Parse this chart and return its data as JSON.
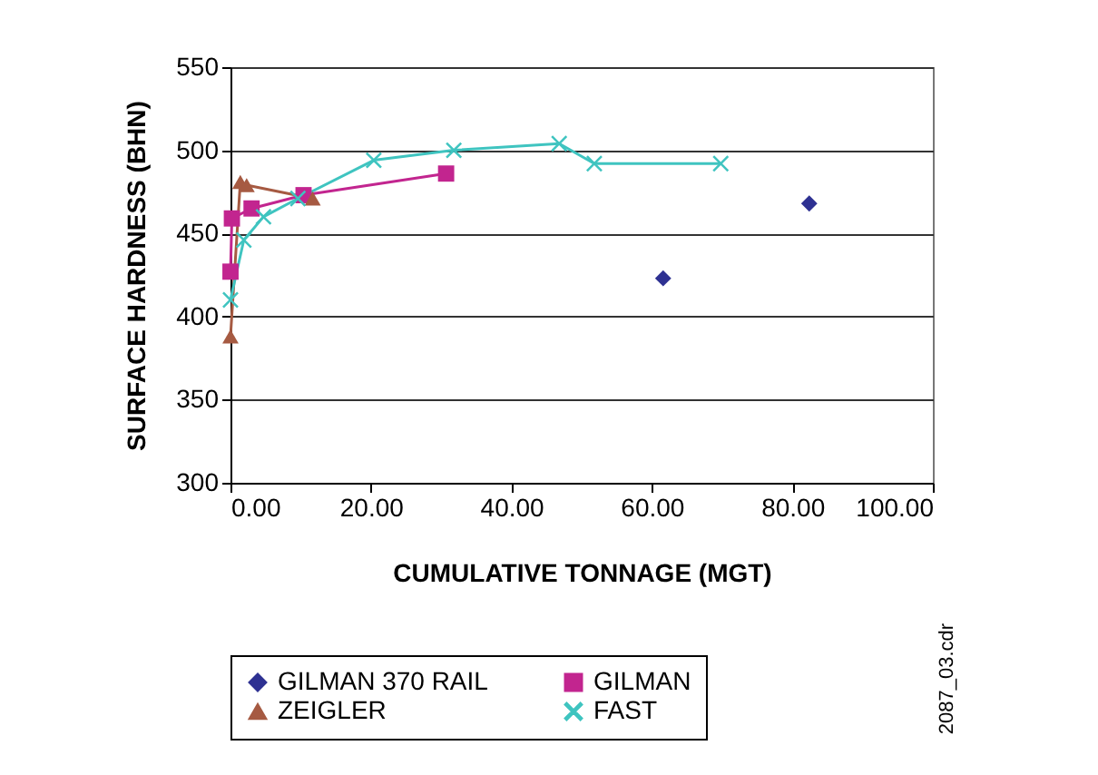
{
  "chart_data": {
    "type": "line",
    "xlabel": "CUMULATIVE TONNAGE (MGT)",
    "ylabel": "SURFACE HARDNESS (BHN)",
    "xlim": [
      0,
      100
    ],
    "xticks": [
      {
        "value": 0,
        "label": "0.00"
      },
      {
        "value": 20,
        "label": "20.00"
      },
      {
        "value": 40,
        "label": "40.00"
      },
      {
        "value": 60,
        "label": "60.00"
      },
      {
        "value": 80,
        "label": "80.00"
      },
      {
        "value": 100,
        "label": "100.00"
      }
    ],
    "ylim": [
      300,
      550
    ],
    "yticks": [
      300,
      350,
      400,
      450,
      500,
      550
    ],
    "grid": "y",
    "legend": "bottom",
    "series": [
      {
        "name": "GILMAN 370 RAIL",
        "type": "scatter",
        "marker": "diamond",
        "color": "#2e3192",
        "x": [
          61.6,
          82.4
        ],
        "values": [
          423,
          468
        ]
      },
      {
        "name": "GILMAN",
        "marker": "square",
        "color": "#c2258f",
        "x": [
          0,
          0.2,
          3,
          10.4,
          30.7
        ],
        "values": [
          427,
          459,
          465,
          473,
          486
        ]
      },
      {
        "name": "ZEIGLER",
        "marker": "triangle",
        "color": "#a65a42",
        "x": [
          0,
          1.4,
          2.3,
          11.7
        ],
        "values": [
          388,
          481,
          479,
          471
        ]
      },
      {
        "name": "FAST",
        "marker": "cross",
        "color": "#3fc4c0",
        "x": [
          0,
          1.9,
          4.7,
          9.6,
          20.4,
          31.8,
          46.8,
          51.8,
          69.8
        ],
        "values": [
          410,
          446,
          460,
          471,
          494,
          500,
          504,
          492,
          492
        ]
      }
    ],
    "annotations": [
      "2087_03.cdr"
    ]
  }
}
